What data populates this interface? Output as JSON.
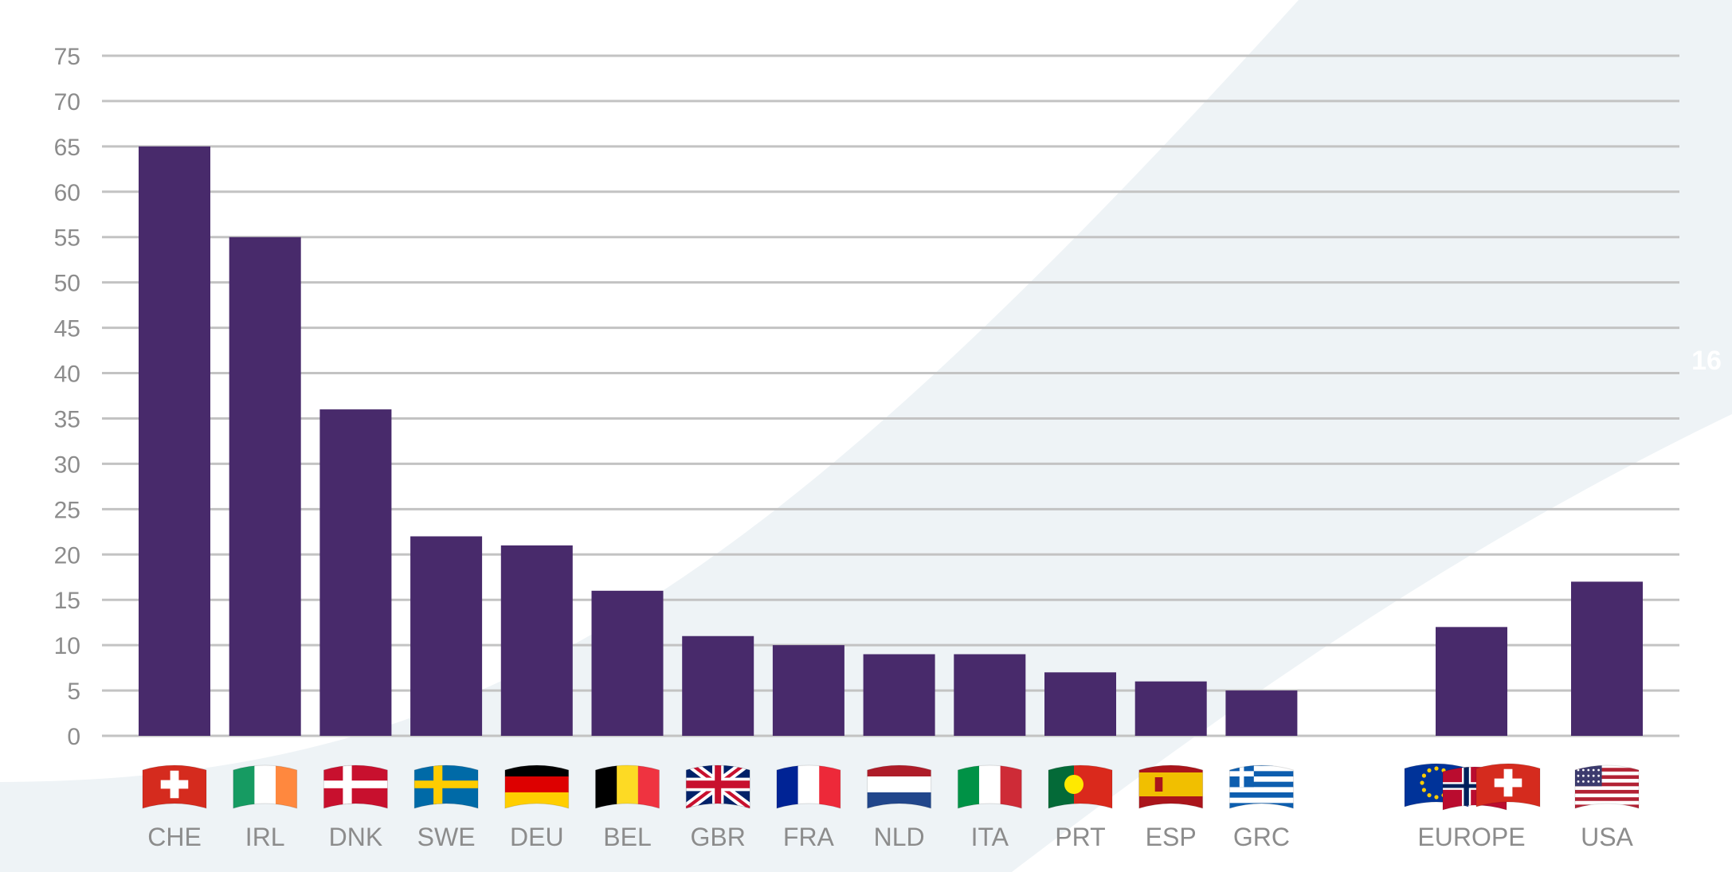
{
  "chart_data": {
    "type": "bar",
    "title": "",
    "xlabel": "",
    "ylabel": "",
    "ylim": [
      0,
      75
    ],
    "yticks": [
      0,
      5,
      10,
      15,
      20,
      25,
      30,
      35,
      40,
      45,
      50,
      55,
      60,
      65,
      70,
      75
    ],
    "grid": true,
    "categories": [
      "CHE",
      "IRL",
      "DNK",
      "SWE",
      "DEU",
      "BEL",
      "GBR",
      "FRA",
      "NLD",
      "ITA",
      "PRT",
      "ESP",
      "GRC",
      "EUROPE",
      "USA"
    ],
    "values": [
      65,
      55,
      36,
      22,
      21,
      16,
      11,
      10,
      9,
      9,
      7,
      6,
      5,
      12,
      17
    ],
    "flags": [
      "che-flag-icon",
      "irl-flag-icon",
      "dnk-flag-icon",
      "swe-flag-icon",
      "deu-flag-icon",
      "bel-flag-icon",
      "gbr-flag-icon",
      "fra-flag-icon",
      "nld-flag-icon",
      "ita-flag-icon",
      "prt-flag-icon",
      "esp-flag-icon",
      "grc-flag-icon",
      "europe-flags-icon",
      "usa-flag-icon"
    ]
  },
  "page_number": "16",
  "colors": {
    "bar": "#482a6b",
    "grid": "#c3c3c3",
    "background_band": "#eef3f6",
    "tick_text": "#8c8c8c"
  }
}
